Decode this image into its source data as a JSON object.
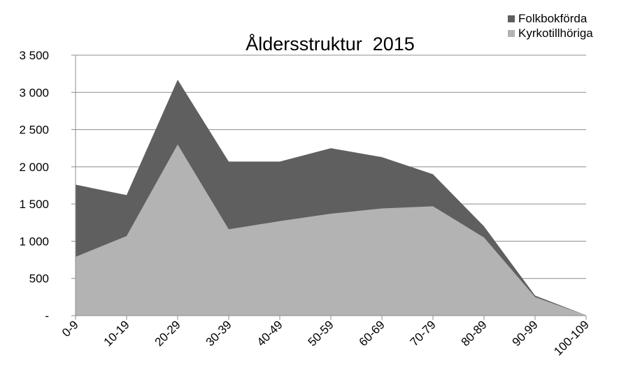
{
  "chart_data": {
    "type": "area",
    "title": "Åldersstruktur  2015",
    "xlabel": "",
    "ylabel": "",
    "categories": [
      "0-9",
      "10-19",
      "20-29",
      "30-39",
      "40-49",
      "50-59",
      "60-69",
      "70-79",
      "80-89",
      "90-99",
      "100-109"
    ],
    "series": [
      {
        "name": "Folkbokförda",
        "color": "#5f5f5f",
        "values": [
          1760,
          1620,
          3170,
          2070,
          2070,
          2250,
          2130,
          1900,
          1200,
          270,
          5
        ]
      },
      {
        "name": "Kyrkotillhöriga",
        "color": "#b3b3b3",
        "values": [
          790,
          1070,
          2300,
          1160,
          1270,
          1370,
          1440,
          1470,
          1050,
          250,
          4
        ]
      }
    ],
    "ylim": [
      0,
      3500
    ],
    "yticks": [
      {
        "value": 0,
        "label": "-"
      },
      {
        "value": 500,
        "label": "500"
      },
      {
        "value": 1000,
        "label": "1 000"
      },
      {
        "value": 1500,
        "label": "1 500"
      },
      {
        "value": 2000,
        "label": "2 000"
      },
      {
        "value": 2500,
        "label": "2 500"
      },
      {
        "value": 3000,
        "label": "3 000"
      },
      {
        "value": 3500,
        "label": "3 500"
      }
    ],
    "grid": true,
    "legend_position": "top-right"
  }
}
